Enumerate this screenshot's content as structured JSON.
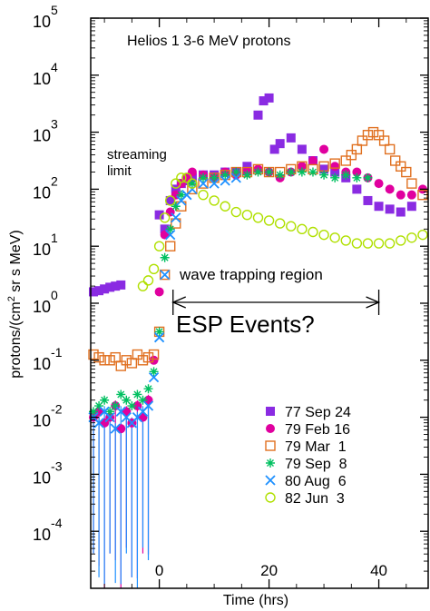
{
  "chart_data": {
    "type": "scatter",
    "title": "Helios 1   3-6 MeV protons",
    "xlabel": "Time (hrs)",
    "ylabel_main": "protons/(cm",
    "ylabel_sup": "2",
    "ylabel_tail": " sr s MeV)",
    "xlim": [
      -12.5,
      49
    ],
    "ylim_log10": [
      -5,
      5
    ],
    "log_y": true,
    "x_ticks": [
      0,
      20,
      40
    ],
    "x_tick_labels": [
      "0",
      "20",
      "40"
    ],
    "y_ticks": [
      {
        "base": "10",
        "exp": "5",
        "value": 5
      },
      {
        "base": "10",
        "exp": "4",
        "value": 4
      },
      {
        "base": "10",
        "exp": "3",
        "value": 3
      },
      {
        "base": "10",
        "exp": "2",
        "value": 2
      },
      {
        "base": "10",
        "exp": "1",
        "value": 1
      },
      {
        "base": "10",
        "exp": "0",
        "value": 0
      },
      {
        "base": "10",
        "exp": "-1",
        "value": -1
      },
      {
        "base": "10",
        "exp": "-2",
        "value": -2
      },
      {
        "base": "10",
        "exp": "-3",
        "value": -3
      },
      {
        "base": "10",
        "exp": "-4",
        "value": -4
      }
    ],
    "grid": false,
    "legend_position": "bottom-right",
    "annotations": {
      "streaming_line1": "streaming",
      "streaming_line2": "limit",
      "wave": "wave trapping region",
      "esp": "ESP Events?",
      "arrow_x": [
        2.5,
        40
      ]
    },
    "series": [
      {
        "name": "77 Sep 24",
        "marker": "square-filled",
        "color": "#8a2be2",
        "x": [
          -12,
          -11,
          -10,
          -9,
          -8,
          -7,
          0,
          1,
          2,
          3,
          4,
          5,
          6,
          8,
          10,
          12,
          14,
          16,
          18,
          19,
          20,
          21,
          22,
          24,
          26,
          28,
          30,
          32,
          34,
          36,
          38,
          40,
          42,
          44,
          46
        ],
        "y": [
          0.2,
          0.22,
          0.25,
          0.28,
          0.3,
          0.32,
          1.55,
          1.3,
          1.8,
          2.0,
          2.1,
          2.15,
          2.2,
          2.25,
          2.25,
          2.3,
          2.3,
          2.4,
          3.3,
          3.55,
          3.6,
          2.7,
          2.8,
          2.9,
          2.7,
          2.5,
          2.35,
          2.3,
          2.2,
          2.0,
          1.8,
          1.7,
          1.65,
          1.6,
          1.7
        ]
      },
      {
        "name": "79 Feb 16",
        "marker": "circle-filled",
        "color": "#e0009f",
        "x": [
          -12,
          -11,
          -10,
          -9,
          -8,
          -7,
          -6,
          -5,
          -4,
          -3,
          -2,
          -1,
          0,
          1,
          2,
          3,
          4,
          5,
          6,
          8,
          10,
          12,
          14,
          16,
          18,
          20,
          22,
          24,
          26,
          28,
          30,
          32,
          34,
          36,
          38,
          40,
          42,
          44,
          46,
          48
        ],
        "y": [
          -2.0,
          -1.9,
          -2.1,
          -2.0,
          -1.8,
          -2.2,
          -1.9,
          -2.1,
          -1.8,
          -2.0,
          -1.7,
          -1.0,
          0.2,
          1.2,
          1.6,
          1.9,
          2.1,
          2.2,
          2.3,
          2.25,
          2.2,
          2.3,
          2.25,
          2.3,
          2.35,
          2.3,
          2.2,
          2.3,
          2.4,
          2.5,
          2.7,
          2.4,
          2.3,
          2.3,
          2.2,
          2.1,
          2.0,
          1.9,
          1.9,
          2.0
        ]
      },
      {
        "name": "79 Mar  1",
        "marker": "square-open",
        "color": "#e07020",
        "x": [
          -12,
          -11,
          -10,
          -9,
          -8,
          -7,
          -6,
          -5,
          -4,
          -3,
          -2,
          -1,
          0,
          1,
          2,
          3,
          4,
          6,
          8,
          10,
          12,
          14,
          16,
          18,
          20,
          22,
          24,
          26,
          28,
          30,
          32,
          34,
          35,
          36,
          37,
          38,
          39,
          40,
          41,
          42,
          43,
          44,
          45,
          46,
          48
        ],
        "y": [
          -0.9,
          -0.95,
          -1.0,
          -1.0,
          -0.95,
          -1.1,
          -1.0,
          -1.05,
          -0.9,
          -1.0,
          -0.95,
          -0.9,
          -0.5,
          0.5,
          1.0,
          1.4,
          1.7,
          2.0,
          2.1,
          2.2,
          2.25,
          2.3,
          2.3,
          2.35,
          2.3,
          2.3,
          2.35,
          2.4,
          2.35,
          2.4,
          2.45,
          2.5,
          2.6,
          2.7,
          2.85,
          2.95,
          3.0,
          2.95,
          2.85,
          2.7,
          2.5,
          2.4,
          2.3,
          2.1,
          1.9
        ]
      },
      {
        "name": "79 Sep  8",
        "marker": "asterisk",
        "color": "#00c060",
        "x": [
          -12,
          -11,
          -10,
          -9,
          -8,
          -7,
          -6,
          -5,
          -4,
          -3,
          -2,
          -1,
          0,
          1,
          2,
          3,
          4,
          6,
          8,
          10,
          12,
          14,
          16,
          18,
          20,
          22,
          24,
          26,
          28,
          30,
          32,
          34,
          36,
          38
        ],
        "y": [
          -1.9,
          -1.8,
          -1.7,
          -1.9,
          -1.8,
          -1.6,
          -1.7,
          -1.8,
          -1.6,
          -1.7,
          -1.5,
          -1.2,
          -0.5,
          0.8,
          1.3,
          1.7,
          1.9,
          2.1,
          2.2,
          2.2,
          2.25,
          2.3,
          2.25,
          2.3,
          2.3,
          2.25,
          2.3,
          2.3,
          2.3,
          2.25,
          2.2,
          2.25,
          2.2,
          2.2
        ]
      },
      {
        "name": "80 Aug  6",
        "marker": "cross",
        "color": "#1e90ff",
        "x": [
          -12,
          -11,
          -10,
          -9,
          -8,
          -7,
          -6,
          -5,
          -4,
          -3,
          -2,
          -1,
          0,
          1,
          2,
          3,
          4,
          5,
          6,
          8,
          10,
          12,
          14
        ],
        "y": [
          -2.0,
          -2.1,
          -1.9,
          -2.0,
          -2.2,
          -1.9,
          -2.0,
          -2.1,
          -2.0,
          -1.9,
          -1.8,
          -1.3,
          -0.6,
          0.5,
          1.2,
          1.5,
          1.8,
          1.9,
          2.0,
          2.1,
          2.1,
          2.15,
          2.2
        ]
      },
      {
        "name": "82 Jun  3",
        "marker": "circle-open",
        "color": "#b0e000",
        "x": [
          -3,
          -2,
          -1,
          0,
          1,
          2,
          3,
          4,
          5,
          6,
          8,
          10,
          12,
          14,
          16,
          18,
          20,
          22,
          24,
          26,
          28,
          30,
          32,
          34,
          36,
          38,
          40,
          42,
          44,
          46,
          48
        ],
        "y": [
          0.3,
          0.4,
          0.6,
          1.0,
          1.5,
          1.8,
          2.1,
          2.2,
          2.2,
          2.1,
          1.9,
          1.8,
          1.7,
          1.6,
          1.55,
          1.5,
          1.45,
          1.4,
          1.35,
          1.3,
          1.25,
          1.2,
          1.15,
          1.1,
          1.05,
          1.05,
          1.05,
          1.05,
          1.1,
          1.15,
          1.2
        ]
      }
    ]
  }
}
